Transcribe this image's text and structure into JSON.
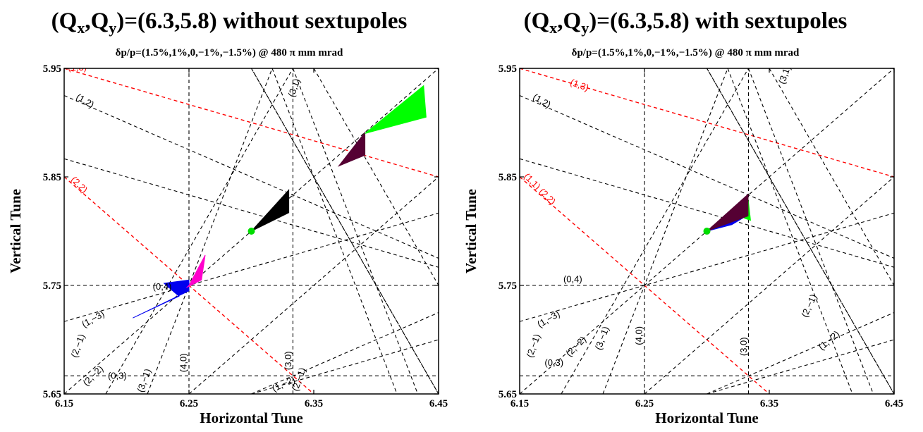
{
  "chart_data": [
    {
      "type": "scatter",
      "title": "(Q_x,Q_y)=(6.3,5.8) without sextupoles",
      "title_main": "(Q",
      "title_sub_x": "x",
      "title_mid": ",Q",
      "title_sub_y": "y",
      "title_rest": ")=(6.3,5.8) without sextupoles",
      "subtitle": "δp/p=(1.5%,1%,0,−1%,−1.5%) @ 480 π mm mrad",
      "xlabel": "Horizontal Tune",
      "ylabel": "Vertical Tune",
      "xlim": [
        6.15,
        6.45
      ],
      "ylim": [
        5.65,
        5.95
      ],
      "xticks": [
        "6.15",
        "6.25",
        "6.35",
        "6.45"
      ],
      "yticks": [
        "5.65",
        "5.75",
        "5.85",
        "5.95"
      ],
      "working_point": {
        "x": 6.3,
        "y": 5.8,
        "color": "#00dd00"
      },
      "series": [
        {
          "color": "#0000ee",
          "polygon": [
            [
              6.25,
              5.745
            ],
            [
              6.205,
              5.72
            ],
            [
              6.242,
              5.74
            ],
            [
              6.23,
              5.752
            ],
            [
              6.25,
              5.755
            ]
          ]
        },
        {
          "color": "#ff00cc",
          "polygon": [
            [
              6.25,
              5.75
            ],
            [
              6.263,
              5.778
            ],
            [
              6.26,
              5.755
            ],
            [
              6.248,
              5.748
            ]
          ]
        },
        {
          "color": "#000000",
          "polygon": [
            [
              6.3,
              5.8
            ],
            [
              6.33,
              5.838
            ],
            [
              6.33,
              5.817
            ]
          ]
        },
        {
          "color": "#550033",
          "polygon": [
            [
              6.37,
              5.86
            ],
            [
              6.391,
              5.891
            ],
            [
              6.391,
              5.87
            ]
          ]
        },
        {
          "color": "#00ff00",
          "polygon": [
            [
              6.391,
              5.89
            ],
            [
              6.438,
              5.934
            ],
            [
              6.44,
              5.905
            ]
          ]
        }
      ],
      "resonance_labels": [
        {
          "text": "(1,3)",
          "x": 6.153,
          "y": 5.948,
          "color": "#ff0000",
          "rot": 0
        },
        {
          "text": "(1,2)",
          "x": 6.159,
          "y": 5.922,
          "color": "#000000",
          "rot": 30
        },
        {
          "text": "(3,1)",
          "x": 6.334,
          "y": 5.923,
          "color": "#000000",
          "rot": -70
        },
        {
          "text": "(2,2)",
          "x": 6.155,
          "y": 5.847,
          "color": "#ff0000",
          "rot": 45
        },
        {
          "text": "(0,4)",
          "x": 6.221,
          "y": 5.746,
          "color": "#000000",
          "rot": 0
        },
        {
          "text": "(1,−3)",
          "x": 6.166,
          "y": 5.711,
          "color": "#000000",
          "rot": -30
        },
        {
          "text": "(2,−1)",
          "x": 6.16,
          "y": 5.683,
          "color": "#000000",
          "rot": -70
        },
        {
          "text": "(2,−2)",
          "x": 6.168,
          "y": 5.657,
          "color": "#000000",
          "rot": -45
        },
        {
          "text": "(0,3)",
          "x": 6.185,
          "y": 5.664,
          "color": "#000000",
          "rot": 0
        },
        {
          "text": "(3,−1)",
          "x": 6.213,
          "y": 5.651,
          "color": "#000000",
          "rot": -70
        },
        {
          "text": "(4,0)",
          "x": 6.248,
          "y": 5.67,
          "color": "#000000",
          "rot": -90
        },
        {
          "text": "(1,−2)",
          "x": 6.318,
          "y": 5.652,
          "color": "#000000",
          "rot": -25
        },
        {
          "text": "(3,0)",
          "x": 6.332,
          "y": 5.672,
          "color": "#000000",
          "rot": -90
        },
        {
          "text": "(2,−1)",
          "x": 6.337,
          "y": 5.652,
          "color": "#000000",
          "rot": -70
        }
      ]
    },
    {
      "type": "scatter",
      "title": "(Q_x,Q_y)=(6.3,5.8) with sextupoles",
      "title_main": "(Q",
      "title_sub_x": "x",
      "title_mid": ",Q",
      "title_sub_y": "y",
      "title_rest": ")=(6.3,5.8) with sextupoles",
      "subtitle": "δp/p=(1.5%,1%,0,−1%,−1.5%) @ 480 π mm mrad",
      "xlabel": "Horizontal Tune",
      "ylabel": "Vertical Tune",
      "xlim": [
        6.15,
        6.45
      ],
      "ylim": [
        5.65,
        5.95
      ],
      "xticks": [
        "6.15",
        "6.25",
        "6.35",
        "6.45"
      ],
      "yticks": [
        "5.65",
        "5.75",
        "5.85",
        "5.95"
      ],
      "working_point": {
        "x": 6.3,
        "y": 5.8,
        "color": "#00dd00"
      },
      "series": [
        {
          "color": "#00ff00",
          "polygon": [
            [
              6.333,
              5.83
            ],
            [
              6.335,
              5.81
            ],
            [
              6.33,
              5.812
            ]
          ]
        },
        {
          "color": "#0000ee",
          "polygon": [
            [
              6.3,
              5.8
            ],
            [
              6.333,
              5.815
            ],
            [
              6.32,
              5.806
            ]
          ]
        },
        {
          "color": "#550033",
          "polygon": [
            [
              6.3,
              5.8
            ],
            [
              6.333,
              5.834
            ],
            [
              6.333,
              5.814
            ]
          ]
        }
      ],
      "resonance_labels": [
        {
          "text": "(1,3)",
          "x": 6.19,
          "y": 5.935,
          "color": "#ff0000",
          "rot": 20
        },
        {
          "text": "(1,2)",
          "x": 6.16,
          "y": 5.922,
          "color": "#000000",
          "rot": 30
        },
        {
          "text": "(3,1)",
          "x": 6.362,
          "y": 5.935,
          "color": "#000000",
          "rot": -70
        },
        {
          "text": "(1,1) (2,2)",
          "x": 6.153,
          "y": 5.85,
          "color": "#ff0000",
          "rot": 45
        },
        {
          "text": "(0,4)",
          "x": 6.185,
          "y": 5.753,
          "color": "#000000",
          "rot": 0
        },
        {
          "text": "(1,−3)",
          "x": 6.166,
          "y": 5.711,
          "color": "#000000",
          "rot": -30
        },
        {
          "text": "(2,−1)",
          "x": 6.16,
          "y": 5.683,
          "color": "#000000",
          "rot": -70
        },
        {
          "text": "(2,−2)",
          "x": 6.19,
          "y": 5.684,
          "color": "#000000",
          "rot": -45
        },
        {
          "text": "(3,−1)",
          "x": 6.215,
          "y": 5.69,
          "color": "#000000",
          "rot": -70
        },
        {
          "text": "(4,0)",
          "x": 6.248,
          "y": 5.695,
          "color": "#000000",
          "rot": -90
        },
        {
          "text": "(0,3)",
          "x": 6.17,
          "y": 5.676,
          "color": "#000000",
          "rot": 0
        },
        {
          "text": "(3,0)",
          "x": 6.332,
          "y": 5.685,
          "color": "#000000",
          "rot": -90
        },
        {
          "text": "(1,−2)",
          "x": 6.392,
          "y": 5.69,
          "color": "#000000",
          "rot": -40
        },
        {
          "text": "(2,−1)",
          "x": 6.38,
          "y": 5.72,
          "color": "#000000",
          "rot": -65
        }
      ]
    }
  ]
}
